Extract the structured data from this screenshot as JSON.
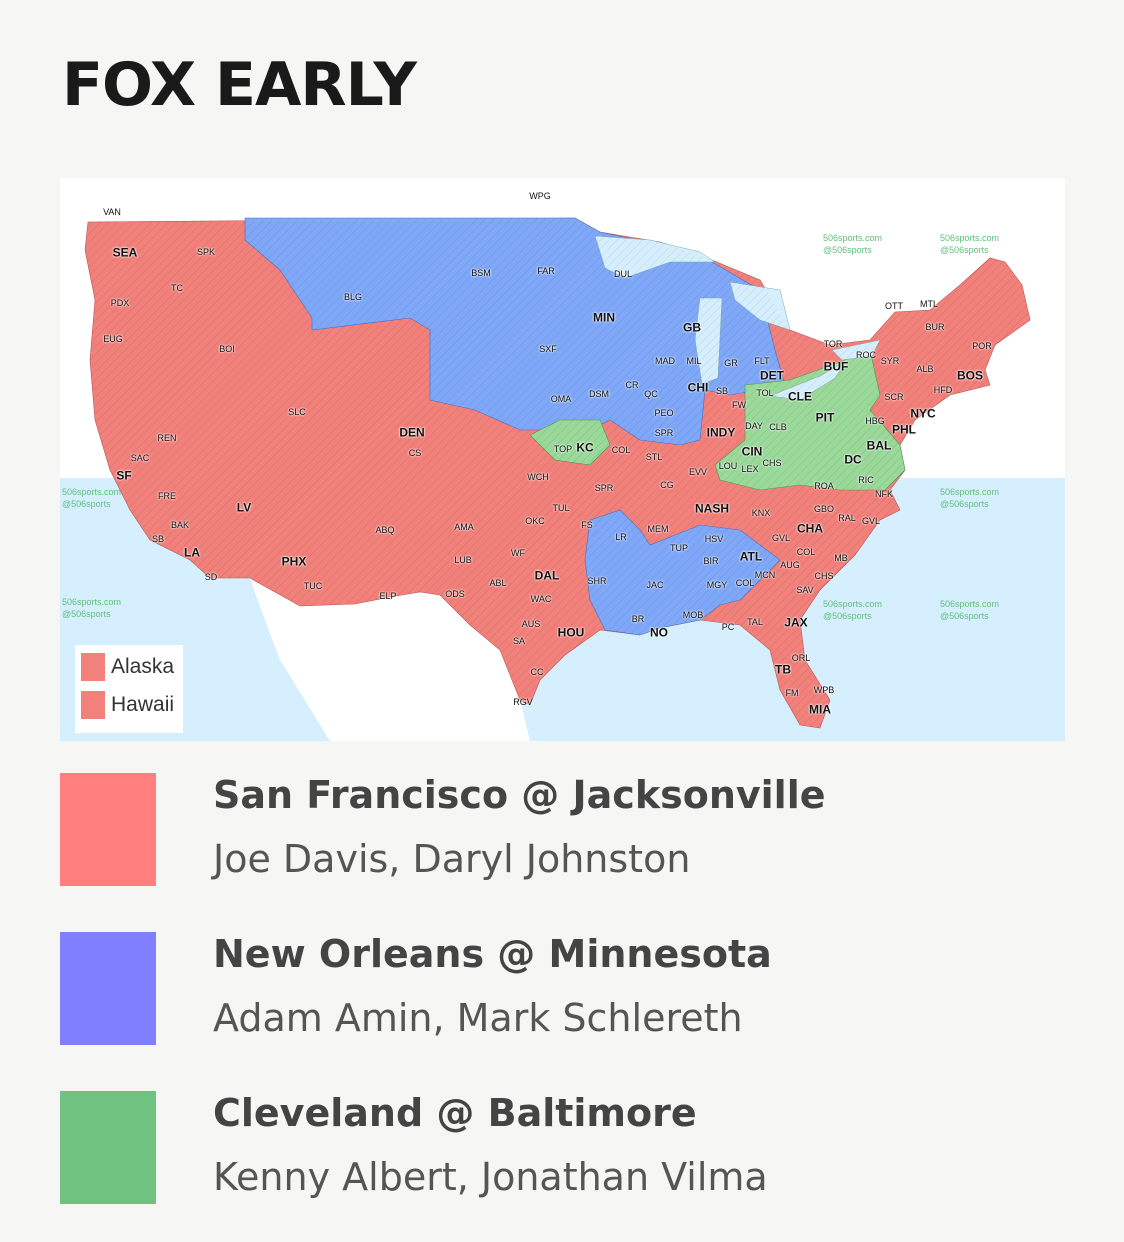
{
  "header": {
    "title": "FOX EARLY"
  },
  "colors": {
    "sf_jax": "#ff7f7f",
    "no_min": "#7f7fff",
    "cle_bal": "#6fc27f",
    "map_red": "#f2807b",
    "map_blue": "#80a8f8",
    "map_green": "#9ad99a",
    "water": "#d6efff",
    "foreign_land": "#ffffff"
  },
  "map": {
    "watermark": [
      "506sports.com",
      "@506sports"
    ],
    "inset_legend": [
      {
        "label": "Alaska",
        "game": "sf_jax"
      },
      {
        "label": "Hawaii",
        "game": "sf_jax"
      }
    ],
    "cities": [
      {
        "code": "WPG",
        "major": false
      },
      {
        "code": "VAN",
        "major": false
      },
      {
        "code": "SEA",
        "major": true
      },
      {
        "code": "SPK",
        "major": false
      },
      {
        "code": "TC",
        "major": false
      },
      {
        "code": "PDX",
        "major": false
      },
      {
        "code": "EUG",
        "major": false
      },
      {
        "code": "BOI",
        "major": false
      },
      {
        "code": "BLG",
        "major": false
      },
      {
        "code": "BSM",
        "major": false
      },
      {
        "code": "FAR",
        "major": false
      },
      {
        "code": "SXF",
        "major": false
      },
      {
        "code": "OMA",
        "major": false
      },
      {
        "code": "MIN",
        "major": true
      },
      {
        "code": "DUL",
        "major": false
      },
      {
        "code": "GB",
        "major": true
      },
      {
        "code": "MAD",
        "major": false
      },
      {
        "code": "MIL",
        "major": false
      },
      {
        "code": "GR",
        "major": false
      },
      {
        "code": "FLT",
        "major": false
      },
      {
        "code": "DET",
        "major": true
      },
      {
        "code": "CHI",
        "major": true
      },
      {
        "code": "SB",
        "major": false
      },
      {
        "code": "CR",
        "major": false
      },
      {
        "code": "QC",
        "major": false
      },
      {
        "code": "DSM",
        "major": false
      },
      {
        "code": "PEO",
        "major": false
      },
      {
        "code": "SPR",
        "major": false
      },
      {
        "code": "TOL",
        "major": false
      },
      {
        "code": "CLE",
        "major": true
      },
      {
        "code": "FW",
        "major": false
      },
      {
        "code": "INDY",
        "major": true
      },
      {
        "code": "DAY",
        "major": false
      },
      {
        "code": "CLB",
        "major": false
      },
      {
        "code": "CIN",
        "major": true
      },
      {
        "code": "PIT",
        "major": true
      },
      {
        "code": "TOR",
        "major": false
      },
      {
        "code": "BUF",
        "major": true
      },
      {
        "code": "ROC",
        "major": false
      },
      {
        "code": "SYR",
        "major": false
      },
      {
        "code": "BUR",
        "major": false
      },
      {
        "code": "POR",
        "major": false
      },
      {
        "code": "ALB",
        "major": false
      },
      {
        "code": "BOS",
        "major": true
      },
      {
        "code": "HFD",
        "major": false
      },
      {
        "code": "SCR",
        "major": false
      },
      {
        "code": "NYC",
        "major": true
      },
      {
        "code": "HBG",
        "major": false
      },
      {
        "code": "PHL",
        "major": true
      },
      {
        "code": "BAL",
        "major": true
      },
      {
        "code": "DC",
        "major": true
      },
      {
        "code": "OTT",
        "major": false
      },
      {
        "code": "MTL",
        "major": false
      },
      {
        "code": "TOP",
        "major": false
      },
      {
        "code": "KC",
        "major": true
      },
      {
        "code": "COL",
        "major": false
      },
      {
        "code": "STL",
        "major": false
      },
      {
        "code": "LOU",
        "major": false
      },
      {
        "code": "LEX",
        "major": false
      },
      {
        "code": "EVV",
        "major": false
      },
      {
        "code": "CHS",
        "major": false
      },
      {
        "code": "ROA",
        "major": false
      },
      {
        "code": "RIC",
        "major": false
      },
      {
        "code": "NFK",
        "major": false
      },
      {
        "code": "CG",
        "major": false
      },
      {
        "code": "SPR",
        "major": false
      },
      {
        "code": "TUL",
        "major": false
      },
      {
        "code": "FS",
        "major": false
      },
      {
        "code": "NASH",
        "major": true
      },
      {
        "code": "KNX",
        "major": false
      },
      {
        "code": "GBO",
        "major": false
      },
      {
        "code": "RAL",
        "major": false
      },
      {
        "code": "GVL",
        "major": false
      },
      {
        "code": "CHA",
        "major": true
      },
      {
        "code": "GVL",
        "major": false
      },
      {
        "code": "MEM",
        "major": false
      },
      {
        "code": "LR",
        "major": false
      },
      {
        "code": "TUP",
        "major": false
      },
      {
        "code": "HSV",
        "major": false
      },
      {
        "code": "ATL",
        "major": true
      },
      {
        "code": "BIR",
        "major": false
      },
      {
        "code": "COL",
        "major": false
      },
      {
        "code": "AUG",
        "major": false
      },
      {
        "code": "MB",
        "major": false
      },
      {
        "code": "MCN",
        "major": false
      },
      {
        "code": "MGY",
        "major": false
      },
      {
        "code": "COL",
        "major": false
      },
      {
        "code": "CHS",
        "major": false
      },
      {
        "code": "SHR",
        "major": false
      },
      {
        "code": "JAC",
        "major": false
      },
      {
        "code": "SAV",
        "major": false
      },
      {
        "code": "BR",
        "major": false
      },
      {
        "code": "NO",
        "major": true
      },
      {
        "code": "MOB",
        "major": false
      },
      {
        "code": "PC",
        "major": false
      },
      {
        "code": "TAL",
        "major": false
      },
      {
        "code": "JAX",
        "major": true
      },
      {
        "code": "HOU",
        "major": true
      },
      {
        "code": "ORL",
        "major": false
      },
      {
        "code": "TB",
        "major": true
      },
      {
        "code": "FM",
        "major": false
      },
      {
        "code": "WPB",
        "major": false
      },
      {
        "code": "MIA",
        "major": true
      },
      {
        "code": "DEN",
        "major": true
      },
      {
        "code": "CS",
        "major": false
      },
      {
        "code": "SLC",
        "major": false
      },
      {
        "code": "REN",
        "major": false
      },
      {
        "code": "SAC",
        "major": false
      },
      {
        "code": "SF",
        "major": true
      },
      {
        "code": "FRE",
        "major": false
      },
      {
        "code": "LV",
        "major": true
      },
      {
        "code": "BAK",
        "major": false
      },
      {
        "code": "SB",
        "major": false
      },
      {
        "code": "LA",
        "major": true
      },
      {
        "code": "SD",
        "major": false
      },
      {
        "code": "PHX",
        "major": true
      },
      {
        "code": "TUC",
        "major": false
      },
      {
        "code": "ABQ",
        "major": false
      },
      {
        "code": "ELP",
        "major": false
      },
      {
        "code": "AMA",
        "major": false
      },
      {
        "code": "LUB",
        "major": false
      },
      {
        "code": "ODS",
        "major": false
      },
      {
        "code": "ABL",
        "major": false
      },
      {
        "code": "WF",
        "major": false
      },
      {
        "code": "OKC",
        "major": false
      },
      {
        "code": "DAL",
        "major": true
      },
      {
        "code": "WAC",
        "major": false
      },
      {
        "code": "AUS",
        "major": false
      },
      {
        "code": "SA",
        "major": false
      },
      {
        "code": "CC",
        "major": false
      },
      {
        "code": "RGV",
        "major": false
      },
      {
        "code": "WCH",
        "major": false
      }
    ]
  },
  "legend": [
    {
      "game": "San Francisco @ Jacksonville",
      "crew": "Joe Davis, Daryl Johnston",
      "color_key": "sf_jax"
    },
    {
      "game": "New Orleans @ Minnesota",
      "crew": "Adam Amin, Mark Schlereth",
      "color_key": "no_min"
    },
    {
      "game": "Cleveland @ Baltimore",
      "crew": "Kenny Albert, Jonathan Vilma",
      "color_key": "cle_bal"
    }
  ]
}
